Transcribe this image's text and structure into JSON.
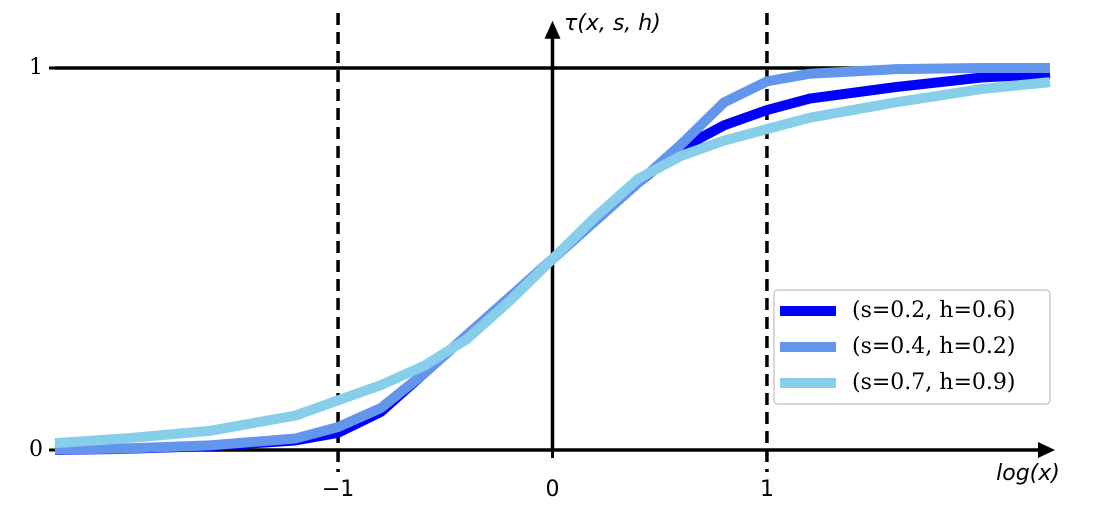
{
  "chart_data": {
    "type": "line",
    "x_label": "log(x)",
    "y_label": "τ(x, s, h)",
    "x": [
      -2.32,
      -2,
      -1.6,
      -1.2,
      -1,
      -0.8,
      -0.6,
      -0.4,
      -0.2,
      0,
      0.2,
      0.4,
      0.6,
      0.8,
      1,
      1.2,
      1.6,
      2,
      2.32
    ],
    "series": [
      {
        "name": "(s=0.2, h=0.6)",
        "color": "#0000ff",
        "values": [
          0.0,
          0.003,
          0.01,
          0.025,
          0.045,
          0.1,
          0.2,
          0.3,
          0.4,
          0.5,
          0.6,
          0.7,
          0.79,
          0.85,
          0.89,
          0.92,
          0.95,
          0.975,
          0.985
        ]
      },
      {
        "name": "(s=0.4, h=0.2)",
        "color": "#6495ed",
        "values": [
          0.001,
          0.004,
          0.012,
          0.03,
          0.06,
          0.11,
          0.2,
          0.3,
          0.4,
          0.5,
          0.6,
          0.7,
          0.8,
          0.91,
          0.965,
          0.985,
          0.997,
          1.0,
          1.0
        ]
      },
      {
        "name": "(s=0.7, h=0.9)",
        "color": "#87ceeb",
        "values": [
          0.018,
          0.03,
          0.05,
          0.09,
          0.13,
          0.17,
          0.22,
          0.29,
          0.39,
          0.5,
          0.61,
          0.71,
          0.77,
          0.81,
          0.84,
          0.87,
          0.91,
          0.945,
          0.963
        ]
      }
    ],
    "xlim": [
      -2.32,
      2.32
    ],
    "ylim": [
      0,
      1.15
    ],
    "xticks": [
      {
        "value": -1,
        "label": "−1"
      },
      0,
      1
    ],
    "yticks": [
      0,
      1
    ],
    "vlines": [
      -1,
      1
    ],
    "hlines": [
      1
    ],
    "legend": "lower right"
  }
}
